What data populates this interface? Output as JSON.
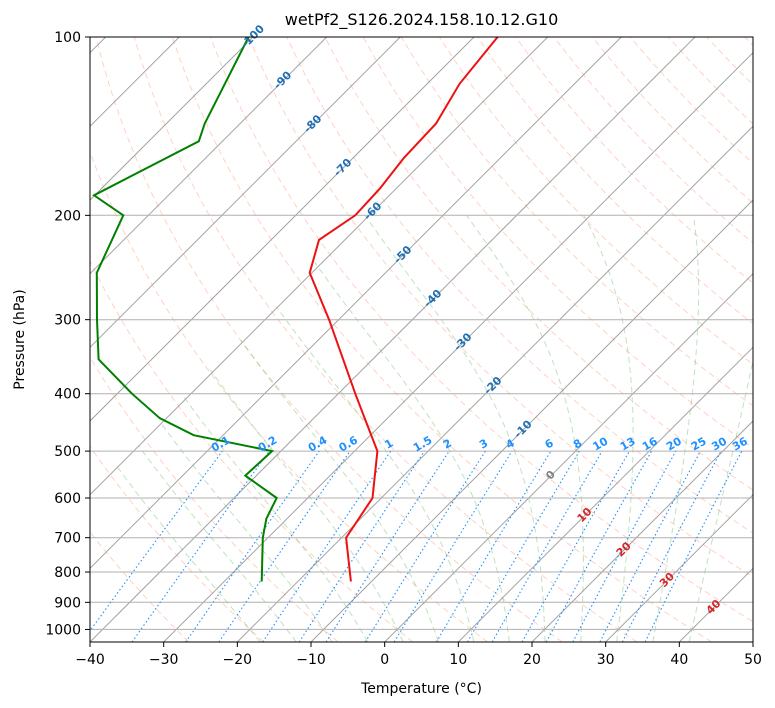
{
  "chart_data": {
    "type": "line",
    "title": "wetPf2_S126.2024.158.10.12.G10",
    "xlabel": "Temperature (°C)",
    "ylabel": "Pressure (hPa)",
    "xlim": [
      -40,
      50
    ],
    "ylim": [
      1050,
      100
    ],
    "y_scale": "log",
    "skew": true,
    "grid": true,
    "x_ticks": [
      -40,
      -30,
      -20,
      -10,
      0,
      10,
      20,
      30,
      40,
      50
    ],
    "y_ticks": [
      100,
      200,
      300,
      400,
      500,
      600,
      700,
      800,
      900,
      1000
    ],
    "series": [
      {
        "color": "#ee1111",
        "pressure": [
          830,
          700,
          600,
          500,
          450,
          400,
          300,
          250,
          220,
          200,
          180,
          160,
          140,
          120,
          100
        ],
        "values": [
          -12.8,
          -19.4,
          -21.2,
          -26.9,
          -32.0,
          -37.7,
          -51.3,
          -60.3,
          -63.5,
          -61.9,
          -62.2,
          -63.1,
          -63.4,
          -65.6,
          -66.8
        ]
      },
      {
        "color": "#008000",
        "pressure": [
          830,
          700,
          650,
          600,
          550,
          500,
          470,
          440,
          400,
          350,
          300,
          250,
          200,
          185,
          150,
          140,
          100
        ],
        "values": [
          -24.9,
          -30.7,
          -32.8,
          -34.2,
          -41.5,
          -41.2,
          -54.0,
          -60.9,
          -68.0,
          -77.2,
          -82.8,
          -89.2,
          -93.4,
          -100.1,
          -93.2,
          -94.8,
          -100.6
        ]
      }
    ],
    "isotherm_labels": [
      "-100",
      "-90",
      "-80",
      "-70",
      "-60",
      "-50",
      "-40",
      "-30",
      "-20",
      "-10",
      "0",
      "10",
      "20",
      "30",
      "40"
    ],
    "mixing_ratio_labels": [
      "0.1",
      "0.2",
      "0.4",
      "0.6",
      "1",
      "1.5",
      "2",
      "3",
      "4",
      "6",
      "8",
      "10",
      "13",
      "16",
      "20",
      "25",
      "30",
      "36"
    ],
    "colors": {
      "isotherm_cold": "#1f6fb4",
      "isotherm_zero": "#808080",
      "isotherm_warm": "#d62728",
      "mixing_ratio": "#1e90ff",
      "dry_adiabat": "#ff7f50",
      "moist_adiabat": "#2ca02c",
      "grid": "#b0b0b0"
    }
  }
}
